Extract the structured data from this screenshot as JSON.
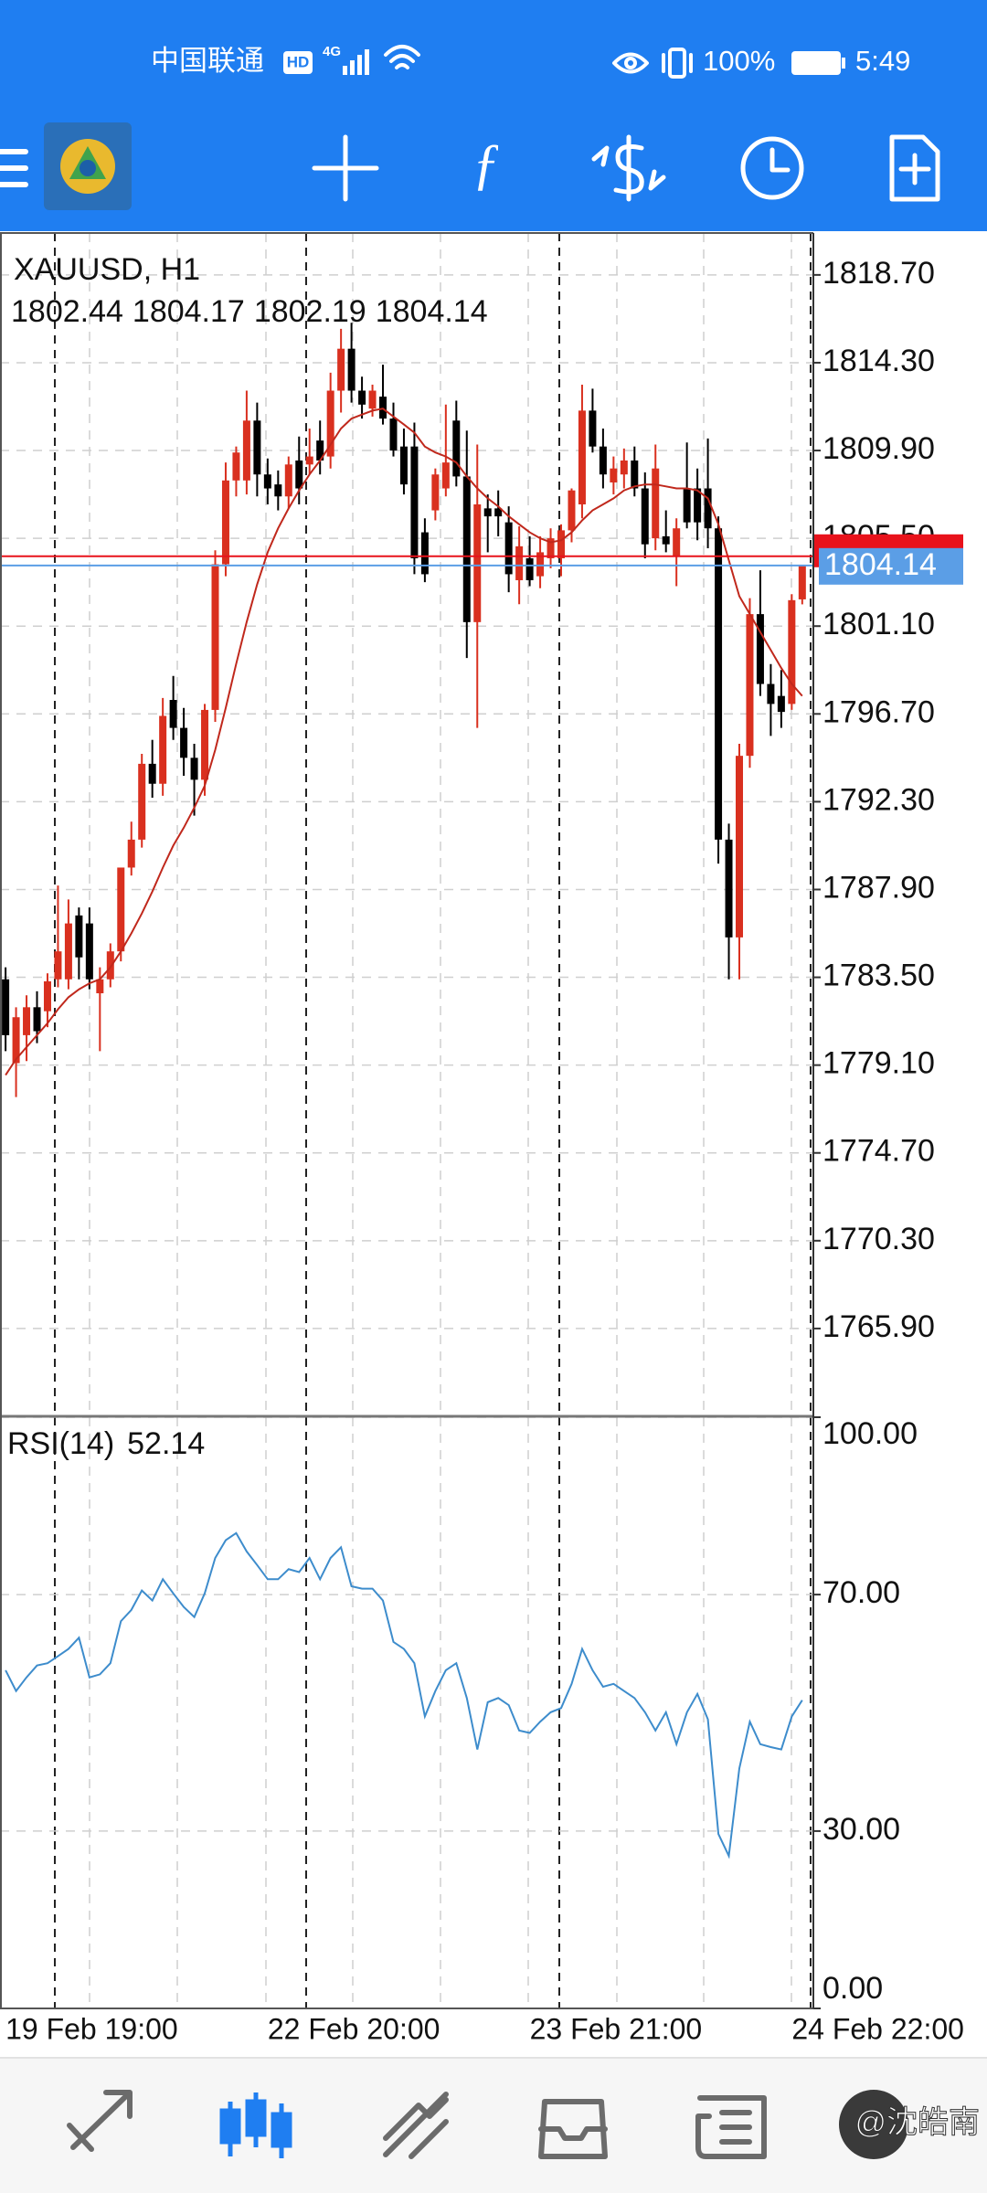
{
  "status_bar": {
    "carrier": "中国联通",
    "hd": "HD",
    "network": "4G",
    "battery": "100%",
    "time": "5:49"
  },
  "watermark": "@沈皓南",
  "chart_data": [
    {
      "type": "candlestick",
      "title": "XAUUSD, H1",
      "categories": [
        "19 Feb 19:00",
        null,
        null,
        null,
        null,
        null,
        null,
        null,
        null,
        null,
        null,
        null,
        null,
        null,
        null,
        null,
        null,
        null,
        null,
        null,
        null,
        null,
        null,
        null,
        null,
        "22 Feb 20:00",
        null,
        null,
        null,
        null,
        null,
        null,
        null,
        null,
        null,
        null,
        null,
        null,
        null,
        null,
        null,
        null,
        null,
        null,
        null,
        null,
        null,
        null,
        null,
        null,
        "23 Feb 21:00",
        null,
        null,
        null,
        null,
        null,
        null,
        null,
        null,
        null,
        null,
        null,
        null,
        null,
        null,
        null,
        null,
        null,
        null,
        null,
        null,
        null,
        null,
        null,
        null,
        "24 Feb 22:00",
        null
      ],
      "open": [
        1783.4,
        1779.2,
        1780.6,
        1782.0,
        1781.8,
        1783.4,
        1783.4,
        1786.6,
        1786.2,
        1782.7,
        1783.4,
        1784.8,
        1789.0,
        1790.4,
        1794.2,
        1793.2,
        1797.4,
        1796.0,
        1794.5,
        1793.4,
        1796.9,
        1804.2,
        1808.4,
        1808.4,
        1811.4,
        1808.7,
        1808.2,
        1807.6,
        1809.4,
        1809.2,
        1810.4,
        1809.6,
        1812.9,
        1815.0,
        1812.9,
        1812.0,
        1812.6,
        1811.5,
        1810.1,
        1810.1,
        1805.8,
        1806.9,
        1808.0,
        1811.4,
        1808.6,
        1801.3,
        1807.0,
        1807.0,
        1806.3,
        1803.4,
        1804.5,
        1803.6,
        1804.5,
        1804.5,
        1805.9,
        1807.2,
        1811.9,
        1810.1,
        1808.3,
        1808.7,
        1809.4,
        1808.0,
        1805.5,
        1805.6,
        1804.6,
        1808.0,
        1808.0,
        1808.0,
        1806.0,
        1790.4,
        1785.5,
        1794.6,
        1801.7,
        1798.2,
        1797.6,
        1797.2,
        1802.44
      ],
      "high": [
        1784.0,
        1782.0,
        1782.6,
        1782.8,
        1783.7,
        1788.1,
        1787.4,
        1787.0,
        1787.0,
        1784.0,
        1785.2,
        1789.0,
        1791.3,
        1794.7,
        1795.4,
        1797.5,
        1798.6,
        1797.0,
        1795.2,
        1797.2,
        1804.9,
        1809.3,
        1810.1,
        1812.9,
        1812.3,
        1809.5,
        1808.9,
        1809.6,
        1810.6,
        1811.0,
        1811.4,
        1813.8,
        1816.0,
        1816.3,
        1813.6,
        1813.2,
        1814.2,
        1812.3,
        1811.0,
        1811.3,
        1806.5,
        1809.0,
        1812.2,
        1812.4,
        1810.9,
        1810.2,
        1807.7,
        1807.9,
        1807.1,
        1806.1,
        1805.6,
        1805.6,
        1806.0,
        1806.2,
        1808.0,
        1813.2,
        1813.0,
        1811.0,
        1809.6,
        1810.0,
        1810.1,
        1808.8,
        1810.2,
        1806.9,
        1806.5,
        1810.3,
        1809.0,
        1810.5,
        1806.6,
        1791.2,
        1795.2,
        1802.5,
        1803.9,
        1799.2,
        1798.9,
        1802.7,
        1804.17
      ],
      "low": [
        1779.8,
        1777.5,
        1779.3,
        1780.2,
        1781.0,
        1783.0,
        1782.9,
        1783.4,
        1782.9,
        1779.8,
        1783.0,
        1784.3,
        1788.6,
        1790.0,
        1792.5,
        1792.6,
        1795.4,
        1793.6,
        1791.6,
        1792.6,
        1796.3,
        1803.6,
        1807.6,
        1807.7,
        1807.6,
        1807.2,
        1806.9,
        1807.0,
        1807.2,
        1808.7,
        1808.7,
        1809.0,
        1811.8,
        1812.3,
        1811.5,
        1811.6,
        1811.2,
        1809.6,
        1807.7,
        1803.7,
        1803.3,
        1806.4,
        1807.6,
        1808.1,
        1799.5,
        1796.0,
        1804.8,
        1805.6,
        1802.8,
        1802.2,
        1803.1,
        1803.0,
        1804.0,
        1803.6,
        1805.3,
        1806.5,
        1809.8,
        1808.0,
        1807.7,
        1808.0,
        1807.6,
        1804.5,
        1804.9,
        1804.8,
        1803.1,
        1806.0,
        1805.4,
        1805.0,
        1789.2,
        1783.4,
        1783.4,
        1794.0,
        1797.6,
        1795.6,
        1796.0,
        1796.9,
        1802.19
      ],
      "close": [
        1780.6,
        1781.5,
        1782.0,
        1780.8,
        1783.3,
        1784.8,
        1786.2,
        1784.5,
        1783.4,
        1783.4,
        1784.8,
        1789.0,
        1790.4,
        1794.2,
        1793.2,
        1796.6,
        1796.0,
        1794.5,
        1793.4,
        1796.9,
        1804.2,
        1808.4,
        1809.8,
        1811.4,
        1808.7,
        1808.0,
        1807.6,
        1809.2,
        1808.0,
        1809.6,
        1809.4,
        1812.9,
        1815.0,
        1812.9,
        1812.2,
        1812.9,
        1811.5,
        1809.9,
        1808.2,
        1804.5,
        1803.7,
        1808.7,
        1809.3,
        1808.6,
        1801.3,
        1807.2,
        1806.6,
        1806.6,
        1803.7,
        1805.1,
        1803.4,
        1804.8,
        1805.5,
        1805.9,
        1807.9,
        1811.9,
        1810.1,
        1808.7,
        1809.0,
        1809.4,
        1808.0,
        1805.2,
        1809.0,
        1805.2,
        1806.0,
        1806.3,
        1806.3,
        1806.0,
        1790.4,
        1785.5,
        1794.6,
        1801.7,
        1798.2,
        1797.2,
        1796.8,
        1802.4,
        1804.14
      ],
      "up_color": "#d9301f",
      "down_color": "#000000",
      "ma": {
        "color": "#c0281c",
        "values": [
          1778.6,
          1779.4,
          1780.0,
          1780.6,
          1781.2,
          1781.9,
          1782.5,
          1782.9,
          1783.2,
          1783.4,
          1784.0,
          1784.8,
          1785.7,
          1786.7,
          1787.8,
          1789.0,
          1790.1,
          1791.0,
          1792.0,
          1793.1,
          1794.9,
          1797.0,
          1799.2,
          1801.3,
          1803.2,
          1804.8,
          1806.0,
          1807.0,
          1807.9,
          1808.7,
          1809.4,
          1810.2,
          1811.0,
          1811.5,
          1811.7,
          1811.9,
          1812.0,
          1811.6,
          1811.2,
          1810.8,
          1810.1,
          1809.8,
          1809.6,
          1809.3,
          1808.6,
          1808.0,
          1807.5,
          1807.1,
          1806.6,
          1806.2,
          1805.8,
          1805.5,
          1805.3,
          1805.4,
          1805.8,
          1806.4,
          1806.9,
          1807.2,
          1807.5,
          1807.9,
          1808.1,
          1808.2,
          1808.2,
          1808.1,
          1808.0,
          1808.0,
          1807.9,
          1807.5,
          1806.2,
          1804.4,
          1802.6,
          1801.7,
          1800.8,
          1799.9,
          1799.0,
          1798.2,
          1797.6
        ]
      },
      "bid_color": "#5b9ee6",
      "ask": {
        "value": 1804.6,
        "color": "#e8121b"
      },
      "ylim": [
        1761.5,
        1820.8
      ],
      "yticks": [
        {
          "value": 1818.7,
          "label": "1818.70"
        },
        {
          "value": 1814.3,
          "label": "1814.30"
        },
        {
          "value": 1809.9,
          "label": "1809.90"
        },
        {
          "value": 1805.5,
          "label": "1805.50"
        },
        {
          "value": 1801.1,
          "label": "1801.10"
        },
        {
          "value": 1796.7,
          "label": "1796.70"
        },
        {
          "value": 1792.3,
          "label": "1792.30"
        },
        {
          "value": 1787.9,
          "label": "1787.90"
        },
        {
          "value": 1783.5,
          "label": "1783.50"
        },
        {
          "value": 1779.1,
          "label": "1779.10"
        },
        {
          "value": 1774.7,
          "label": "1774.70"
        },
        {
          "value": 1770.3,
          "label": "1770.30"
        },
        {
          "value": 1765.9,
          "label": "1765.90"
        }
      ],
      "grid": true
    },
    {
      "type": "line",
      "series": [
        {
          "name": "RSI(14)",
          "color": "#3d8ccc",
          "values": [
            57.2,
            53.7,
            56.0,
            58.0,
            58.4,
            59.6,
            60.8,
            62.7,
            56.0,
            56.5,
            58.4,
            65.5,
            67.4,
            70.7,
            69.0,
            72.6,
            70.2,
            67.9,
            66.2,
            70.2,
            76.2,
            79.2,
            80.4,
            77.3,
            75.0,
            72.6,
            72.6,
            74.3,
            73.8,
            76.2,
            72.6,
            76.2,
            78.0,
            71.4,
            71.0,
            71.0,
            69.0,
            62.0,
            60.8,
            58.4,
            49.4,
            53.7,
            57.2,
            58.4,
            52.5,
            43.8,
            51.8,
            52.5,
            51.3,
            47.0,
            46.6,
            48.5,
            50.1,
            50.8,
            54.9,
            60.8,
            57.2,
            54.4,
            54.9,
            53.7,
            52.5,
            50.1,
            47.0,
            50.1,
            44.7,
            50.1,
            53.2,
            48.9,
            29.5,
            25.8,
            40.6,
            48.5,
            44.7,
            44.2,
            43.8,
            49.4,
            52.14
          ]
        }
      ],
      "ylim": [
        0,
        100
      ],
      "yticks": [
        {
          "value": 100,
          "label": "100.00"
        },
        {
          "value": 70,
          "label": "70.00"
        },
        {
          "value": 30,
          "label": "30.00"
        },
        {
          "value": 0,
          "label": "0.00"
        }
      ],
      "grid": true
    }
  ]
}
